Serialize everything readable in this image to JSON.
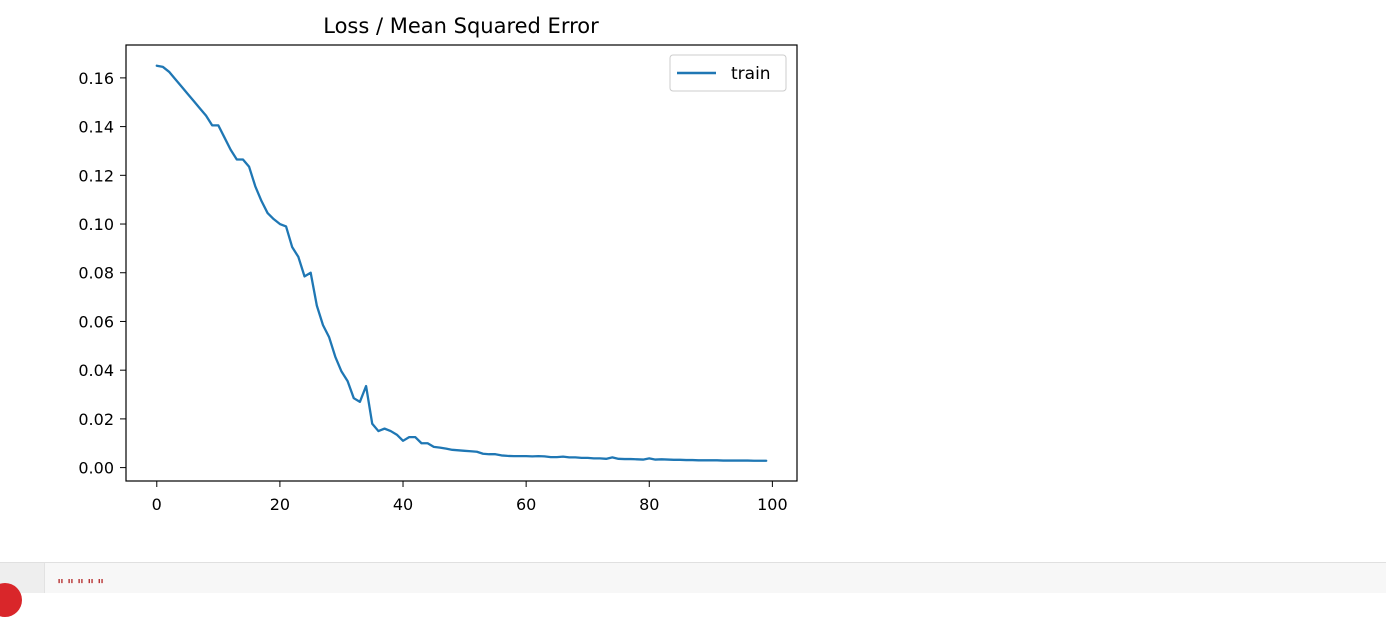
{
  "chart_data": {
    "type": "line",
    "title": "Loss / Mean Squared Error",
    "xlabel": "",
    "ylabel": "",
    "xlim": [
      -5,
      104
    ],
    "ylim": [
      -0.0055,
      0.1735
    ],
    "xticks": [
      0,
      20,
      40,
      60,
      80,
      100
    ],
    "yticks": [
      0.0,
      0.02,
      0.04,
      0.06,
      0.08,
      0.1,
      0.12,
      0.14,
      0.16
    ],
    "xtick_labels": [
      "0",
      "20",
      "40",
      "60",
      "80",
      "100"
    ],
    "ytick_labels": [
      "0.00",
      "0.02",
      "0.04",
      "0.06",
      "0.08",
      "0.10",
      "0.12",
      "0.14",
      "0.16"
    ],
    "grid": false,
    "legend_position": "top-right",
    "series": [
      {
        "name": "train",
        "color": "#1f77b4",
        "x": [
          0,
          1,
          2,
          3,
          4,
          5,
          6,
          7,
          8,
          9,
          10,
          11,
          12,
          13,
          14,
          15,
          16,
          17,
          18,
          19,
          20,
          21,
          22,
          23,
          24,
          25,
          26,
          27,
          28,
          29,
          30,
          31,
          32,
          33,
          34,
          35,
          36,
          37,
          38,
          39,
          40,
          41,
          42,
          43,
          44,
          45,
          46,
          47,
          48,
          49,
          50,
          51,
          52,
          53,
          54,
          55,
          56,
          57,
          58,
          59,
          60,
          61,
          62,
          63,
          64,
          65,
          66,
          67,
          68,
          69,
          70,
          71,
          72,
          73,
          74,
          75,
          76,
          77,
          78,
          79,
          80,
          81,
          82,
          83,
          84,
          85,
          86,
          87,
          88,
          89,
          90,
          91,
          92,
          93,
          94,
          95,
          96,
          97,
          98,
          99
        ],
        "values": [
          0.165,
          0.1645,
          0.1625,
          0.1595,
          0.1565,
          0.1535,
          0.1505,
          0.1475,
          0.1445,
          0.1405,
          0.1405,
          0.1355,
          0.1305,
          0.1265,
          0.1265,
          0.1235,
          0.1155,
          0.1095,
          0.1045,
          0.102,
          0.1,
          0.099,
          0.0905,
          0.0865,
          0.0785,
          0.08,
          0.0665,
          0.0585,
          0.0535,
          0.0455,
          0.0395,
          0.0355,
          0.0285,
          0.027,
          0.0335,
          0.018,
          0.015,
          0.016,
          0.015,
          0.0135,
          0.011,
          0.0125,
          0.0125,
          0.01,
          0.01,
          0.0085,
          0.0082,
          0.0078,
          0.0073,
          0.0071,
          0.0069,
          0.0067,
          0.0065,
          0.0057,
          0.0055,
          0.0055,
          0.005,
          0.0048,
          0.0047,
          0.0047,
          0.0047,
          0.0046,
          0.0047,
          0.0046,
          0.0043,
          0.0043,
          0.0045,
          0.0042,
          0.0042,
          0.004,
          0.004,
          0.0038,
          0.0038,
          0.0036,
          0.0042,
          0.0036,
          0.0035,
          0.0035,
          0.0034,
          0.0033,
          0.0038,
          0.0033,
          0.0034,
          0.0033,
          0.0032,
          0.0032,
          0.0031,
          0.0031,
          0.003,
          0.003,
          0.003,
          0.003,
          0.0029,
          0.0029,
          0.0029,
          0.0029,
          0.0029,
          0.0028,
          0.0028,
          0.0028
        ]
      }
    ]
  },
  "next_cell": {
    "code_text": "\"\"\"\"\""
  }
}
